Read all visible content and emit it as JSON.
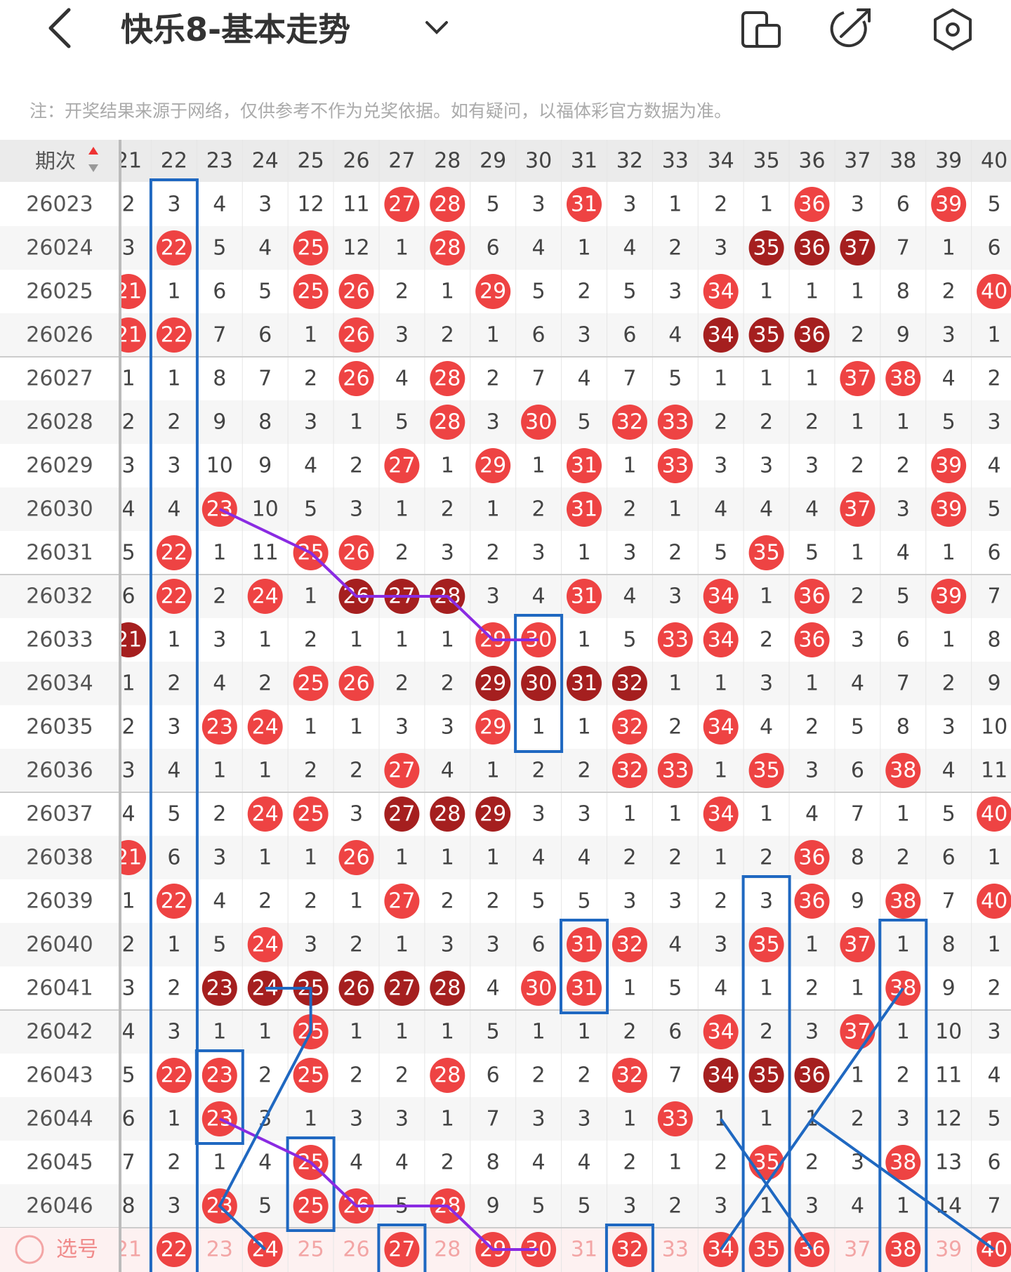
{
  "header": {
    "title": "快乐8-基本走势"
  },
  "note": "注：开奖结果来源于网络，仅供参考不作为兑奖依据。如有疑问，以福体彩官方数据为准。",
  "table": {
    "corner": "期次",
    "columns": [
      "21",
      "22",
      "23",
      "24",
      "25",
      "26",
      "27",
      "28",
      "29",
      "30",
      "31",
      "32",
      "33",
      "34",
      "35",
      "36",
      "37",
      "38",
      "39",
      "40"
    ],
    "rows": [
      {
        "issue": "26023",
        "cells": [
          "2",
          "3",
          "4",
          "3",
          "12",
          "11",
          {
            "text": "27",
            "ball": "red"
          },
          {
            "text": "28",
            "ball": "red"
          },
          "5",
          "3",
          {
            "text": "31",
            "ball": "red"
          },
          "3",
          "1",
          "2",
          "1",
          {
            "text": "36",
            "ball": "red"
          },
          "3",
          "6",
          {
            "text": "39",
            "ball": "red"
          },
          "5"
        ]
      },
      {
        "issue": "26024",
        "cells": [
          "3",
          {
            "text": "22",
            "ball": "red"
          },
          "5",
          "4",
          {
            "text": "25",
            "ball": "red"
          },
          "12",
          "1",
          {
            "text": "28",
            "ball": "red"
          },
          "6",
          "4",
          "1",
          "4",
          "2",
          "3",
          {
            "text": "35",
            "ball": "dark"
          },
          {
            "text": "36",
            "ball": "dark"
          },
          {
            "text": "37",
            "ball": "dark"
          },
          "7",
          "1",
          "6"
        ]
      },
      {
        "issue": "26025",
        "cells": [
          {
            "text": "21",
            "ball": "red"
          },
          "1",
          "6",
          "5",
          {
            "text": "25",
            "ball": "red"
          },
          {
            "text": "26",
            "ball": "red"
          },
          "2",
          "1",
          {
            "text": "29",
            "ball": "red"
          },
          "5",
          "2",
          "5",
          "3",
          {
            "text": "34",
            "ball": "red"
          },
          "1",
          "1",
          "1",
          "8",
          "2",
          {
            "text": "40",
            "ball": "red"
          }
        ]
      },
      {
        "issue": "26026",
        "cells": [
          {
            "text": "21",
            "ball": "red"
          },
          {
            "text": "22",
            "ball": "red"
          },
          "7",
          "6",
          "1",
          {
            "text": "26",
            "ball": "red"
          },
          "3",
          "2",
          "1",
          "6",
          "3",
          "6",
          "4",
          {
            "text": "34",
            "ball": "dark"
          },
          {
            "text": "35",
            "ball": "dark"
          },
          {
            "text": "36",
            "ball": "dark"
          },
          "2",
          "9",
          "3",
          "1"
        ]
      },
      {
        "issue": "26027",
        "cells": [
          "1",
          "1",
          "8",
          "7",
          "2",
          {
            "text": "26",
            "ball": "red"
          },
          "4",
          {
            "text": "28",
            "ball": "red"
          },
          "2",
          "7",
          "4",
          "7",
          "5",
          "1",
          "1",
          "1",
          {
            "text": "37",
            "ball": "red"
          },
          {
            "text": "38",
            "ball": "red"
          },
          "4",
          "2"
        ]
      },
      {
        "issue": "26028",
        "cells": [
          "2",
          "2",
          "9",
          "8",
          "3",
          "1",
          "5",
          {
            "text": "28",
            "ball": "red"
          },
          "3",
          {
            "text": "30",
            "ball": "red"
          },
          "5",
          {
            "text": "32",
            "ball": "red"
          },
          {
            "text": "33",
            "ball": "red"
          },
          "2",
          "2",
          "2",
          "1",
          "1",
          "5",
          "3"
        ]
      },
      {
        "issue": "26029",
        "cells": [
          "3",
          "3",
          "10",
          "9",
          "4",
          "2",
          {
            "text": "27",
            "ball": "red"
          },
          "1",
          {
            "text": "29",
            "ball": "red"
          },
          "1",
          {
            "text": "31",
            "ball": "red"
          },
          "1",
          {
            "text": "33",
            "ball": "red"
          },
          "3",
          "3",
          "3",
          "2",
          "2",
          {
            "text": "39",
            "ball": "red"
          },
          "4"
        ]
      },
      {
        "issue": "26030",
        "cells": [
          "4",
          "4",
          {
            "text": "23",
            "ball": "red"
          },
          "10",
          "5",
          "3",
          "1",
          "2",
          "1",
          "2",
          {
            "text": "31",
            "ball": "red"
          },
          "2",
          "1",
          "4",
          "4",
          "4",
          {
            "text": "37",
            "ball": "red"
          },
          "3",
          {
            "text": "39",
            "ball": "red"
          },
          "5"
        ]
      },
      {
        "issue": "26031",
        "cells": [
          "5",
          {
            "text": "22",
            "ball": "red"
          },
          "1",
          "11",
          {
            "text": "25",
            "ball": "red"
          },
          {
            "text": "26",
            "ball": "red"
          },
          "2",
          "3",
          "2",
          "3",
          "1",
          "3",
          "2",
          "5",
          {
            "text": "35",
            "ball": "red"
          },
          "5",
          "1",
          "4",
          "1",
          "6"
        ]
      },
      {
        "issue": "26032",
        "cells": [
          "6",
          {
            "text": "22",
            "ball": "red"
          },
          "2",
          {
            "text": "24",
            "ball": "red"
          },
          "1",
          {
            "text": "26",
            "ball": "dark"
          },
          {
            "text": "27",
            "ball": "dark"
          },
          {
            "text": "28",
            "ball": "dark"
          },
          "3",
          "4",
          {
            "text": "31",
            "ball": "red"
          },
          "4",
          "3",
          {
            "text": "34",
            "ball": "red"
          },
          "1",
          {
            "text": "36",
            "ball": "red"
          },
          "2",
          "5",
          {
            "text": "39",
            "ball": "red"
          },
          "7"
        ]
      },
      {
        "issue": "26033",
        "cells": [
          {
            "text": "21",
            "ball": "dark"
          },
          "1",
          "3",
          "1",
          "2",
          "1",
          "1",
          "1",
          {
            "text": "29",
            "ball": "red"
          },
          {
            "text": "30",
            "ball": "red"
          },
          "1",
          "5",
          {
            "text": "33",
            "ball": "red"
          },
          {
            "text": "34",
            "ball": "red"
          },
          "2",
          {
            "text": "36",
            "ball": "red"
          },
          "3",
          "6",
          "1",
          "8"
        ]
      },
      {
        "issue": "26034",
        "cells": [
          "1",
          "2",
          "4",
          "2",
          {
            "text": "25",
            "ball": "red"
          },
          {
            "text": "26",
            "ball": "red"
          },
          "2",
          "2",
          {
            "text": "29",
            "ball": "dark"
          },
          {
            "text": "30",
            "ball": "dark"
          },
          {
            "text": "31",
            "ball": "dark"
          },
          {
            "text": "32",
            "ball": "dark"
          },
          "1",
          "1",
          "3",
          "1",
          "4",
          "7",
          "2",
          "9"
        ]
      },
      {
        "issue": "26035",
        "cells": [
          "2",
          "3",
          {
            "text": "23",
            "ball": "red"
          },
          {
            "text": "24",
            "ball": "red"
          },
          "1",
          "1",
          "3",
          "3",
          {
            "text": "29",
            "ball": "red"
          },
          "1",
          "1",
          {
            "text": "32",
            "ball": "red"
          },
          "2",
          {
            "text": "34",
            "ball": "red"
          },
          "4",
          "2",
          "5",
          "8",
          "3",
          "10"
        ]
      },
      {
        "issue": "26036",
        "cells": [
          "3",
          "4",
          "1",
          "1",
          "2",
          "2",
          {
            "text": "27",
            "ball": "red"
          },
          "4",
          "1",
          "2",
          "2",
          {
            "text": "32",
            "ball": "red"
          },
          {
            "text": "33",
            "ball": "red"
          },
          "1",
          {
            "text": "35",
            "ball": "red"
          },
          "3",
          "6",
          {
            "text": "38",
            "ball": "red"
          },
          "4",
          "11"
        ]
      },
      {
        "issue": "26037",
        "cells": [
          "4",
          "5",
          "2",
          {
            "text": "24",
            "ball": "red"
          },
          {
            "text": "25",
            "ball": "red"
          },
          "3",
          {
            "text": "27",
            "ball": "dark"
          },
          {
            "text": "28",
            "ball": "dark"
          },
          {
            "text": "29",
            "ball": "dark"
          },
          "3",
          "3",
          "1",
          "1",
          {
            "text": "34",
            "ball": "red"
          },
          "1",
          "4",
          "7",
          "1",
          "5",
          {
            "text": "40",
            "ball": "red"
          }
        ]
      },
      {
        "issue": "26038",
        "cells": [
          {
            "text": "21",
            "ball": "red"
          },
          "6",
          "3",
          "1",
          "1",
          {
            "text": "26",
            "ball": "red"
          },
          "1",
          "1",
          "1",
          "4",
          "4",
          "2",
          "2",
          "1",
          "2",
          {
            "text": "36",
            "ball": "red"
          },
          "8",
          "2",
          "6",
          "1"
        ]
      },
      {
        "issue": "26039",
        "cells": [
          "1",
          {
            "text": "22",
            "ball": "red"
          },
          "4",
          "2",
          "2",
          "1",
          {
            "text": "27",
            "ball": "red"
          },
          "2",
          "2",
          "5",
          "5",
          "3",
          "3",
          "2",
          "3",
          {
            "text": "36",
            "ball": "red"
          },
          "9",
          {
            "text": "38",
            "ball": "red"
          },
          "7",
          {
            "text": "40",
            "ball": "red"
          }
        ]
      },
      {
        "issue": "26040",
        "cells": [
          "2",
          "1",
          "5",
          {
            "text": "24",
            "ball": "red"
          },
          "3",
          "2",
          "1",
          "3",
          "3",
          "6",
          {
            "text": "31",
            "ball": "red"
          },
          {
            "text": "32",
            "ball": "red"
          },
          "4",
          "3",
          {
            "text": "35",
            "ball": "red"
          },
          "1",
          {
            "text": "37",
            "ball": "red"
          },
          "1",
          "8",
          "1"
        ]
      },
      {
        "issue": "26041",
        "cells": [
          "3",
          "2",
          {
            "text": "23",
            "ball": "dark"
          },
          {
            "text": "24",
            "ball": "dark"
          },
          {
            "text": "25",
            "ball": "dark"
          },
          {
            "text": "26",
            "ball": "dark"
          },
          {
            "text": "27",
            "ball": "dark"
          },
          {
            "text": "28",
            "ball": "dark"
          },
          "4",
          {
            "text": "30",
            "ball": "red"
          },
          {
            "text": "31",
            "ball": "red"
          },
          "1",
          "5",
          "4",
          "1",
          "2",
          "1",
          {
            "text": "38",
            "ball": "red"
          },
          "9",
          "2"
        ]
      },
      {
        "issue": "26042",
        "cells": [
          "4",
          "3",
          "1",
          "1",
          {
            "text": "25",
            "ball": "red"
          },
          "1",
          "1",
          "1",
          "5",
          "1",
          "1",
          "2",
          "6",
          {
            "text": "34",
            "ball": "red"
          },
          "2",
          "3",
          {
            "text": "37",
            "ball": "red"
          },
          "1",
          "10",
          "3"
        ]
      },
      {
        "issue": "26043",
        "cells": [
          "5",
          {
            "text": "22",
            "ball": "red"
          },
          {
            "text": "23",
            "ball": "red"
          },
          "2",
          {
            "text": "25",
            "ball": "red"
          },
          "2",
          "2",
          {
            "text": "28",
            "ball": "red"
          },
          "6",
          "2",
          "2",
          {
            "text": "32",
            "ball": "red"
          },
          "7",
          {
            "text": "34",
            "ball": "dark"
          },
          {
            "text": "35",
            "ball": "dark"
          },
          {
            "text": "36",
            "ball": "dark"
          },
          "1",
          "2",
          "11",
          "4"
        ]
      },
      {
        "issue": "26044",
        "cells": [
          "6",
          "1",
          {
            "text": "23",
            "ball": "red"
          },
          "3",
          "1",
          "3",
          "3",
          "1",
          "7",
          "3",
          "3",
          "1",
          {
            "text": "33",
            "ball": "red"
          },
          "1",
          "1",
          "1",
          "2",
          "3",
          "12",
          "5"
        ]
      },
      {
        "issue": "26045",
        "cells": [
          "7",
          "2",
          "1",
          "4",
          {
            "text": "25",
            "ball": "red"
          },
          "4",
          "4",
          "2",
          "8",
          "4",
          "4",
          "2",
          "1",
          "2",
          {
            "text": "35",
            "ball": "red"
          },
          "2",
          "3",
          {
            "text": "38",
            "ball": "red"
          },
          "13",
          "6"
        ]
      },
      {
        "issue": "26046",
        "cells": [
          "8",
          "3",
          {
            "text": "23",
            "ball": "red"
          },
          "5",
          {
            "text": "25",
            "ball": "red"
          },
          {
            "text": "26",
            "ball": "red"
          },
          "5",
          {
            "text": "28",
            "ball": "red"
          },
          "9",
          "5",
          "5",
          "3",
          "2",
          "3",
          "1",
          "3",
          "4",
          "1",
          "14",
          "7"
        ]
      }
    ],
    "footer": {
      "label": "选号",
      "cells": [
        "21",
        {
          "text": "22",
          "ball": "red"
        },
        "23",
        {
          "text": "24",
          "ball": "red"
        },
        "25",
        "26",
        {
          "text": "27",
          "ball": "red"
        },
        "28",
        {
          "text": "29",
          "ball": "red"
        },
        {
          "text": "30",
          "ball": "red"
        },
        "31",
        {
          "text": "32",
          "ball": "red"
        },
        "33",
        {
          "text": "34",
          "ball": "red"
        },
        {
          "text": "35",
          "ball": "red"
        },
        {
          "text": "36",
          "ball": "red"
        },
        "37",
        {
          "text": "38",
          "ball": "red"
        },
        "39",
        {
          "text": "40",
          "ball": "red"
        }
      ]
    }
  }
}
